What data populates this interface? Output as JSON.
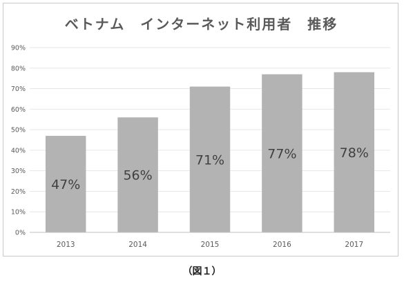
{
  "chart_data": {
    "type": "bar",
    "title": "ベトナム　インターネット利用者　推移",
    "categories": [
      "2013",
      "2014",
      "2015",
      "2016",
      "2017"
    ],
    "values": [
      47,
      56,
      71,
      77,
      78
    ],
    "value_labels": [
      "47%",
      "56%",
      "71%",
      "77%",
      "78%"
    ],
    "yticks": [
      "0%",
      "10%",
      "20%",
      "30%",
      "40%",
      "50%",
      "60%",
      "70%",
      "80%",
      "90%"
    ],
    "ylim": [
      0,
      90
    ],
    "grid": true,
    "bar_color": "#b3b3b3",
    "grid_color": "#e6e6e6",
    "legend": "none"
  },
  "caption": "（図１）"
}
